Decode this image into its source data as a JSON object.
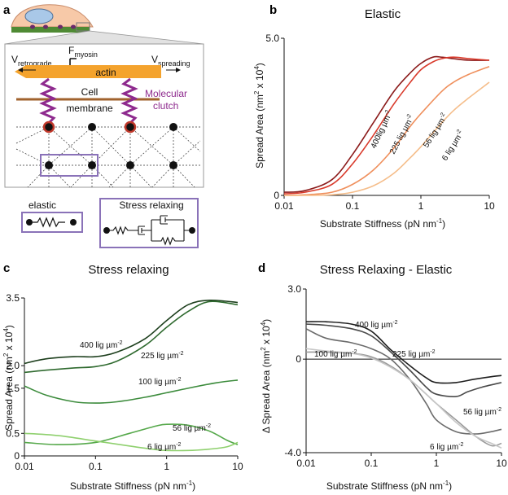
{
  "panel_a": {
    "label": "a",
    "v_retrograde": "V",
    "v_retrograde_sub": "retrograde",
    "f_myosin": "F",
    "f_myosin_sub": "myosin",
    "v_spreading": "V",
    "v_spreading_sub": "spreading",
    "actin": "actin",
    "membrane_1": "Cell",
    "membrane_2": "membrane",
    "clutch_1": "Molecular",
    "clutch_2": "clutch",
    "legend_elastic": "elastic",
    "legend_relax": "Stress relaxing",
    "colors": {
      "actin": "#f4a32d",
      "clutch": "#8e2a8e",
      "membrane": "#a0622d",
      "box": "#8a72b8",
      "cell": "#f7c9a8",
      "substrate": "#4f8a34"
    }
  },
  "chart_data": [
    {
      "panel": "b",
      "title": "Elastic",
      "type": "line",
      "xlabel": "Substrate Stiffness (pN nm",
      "xlabel_sup": "-1",
      "xlabel_end": ")",
      "ylabel": "Spread Area (nm",
      "ylabel_sup1": "2",
      "ylabel_mid": " x 10",
      "ylabel_sup2": "4",
      "ylabel_end": ")",
      "xscale": "log",
      "xlim": [
        0.01,
        10
      ],
      "ylim": [
        0,
        5.0
      ],
      "xticks": [
        "0.01",
        "0.1",
        "1",
        "10"
      ],
      "yticks": [
        "0",
        "5.0"
      ],
      "series": [
        {
          "name": "400 lig µm-2",
          "color": "#8b1a1a",
          "x": [
            0.01,
            0.02,
            0.05,
            0.1,
            0.2,
            0.4,
            0.7,
            1,
            1.5,
            2,
            3,
            5,
            10
          ],
          "y": [
            0.1,
            0.15,
            0.5,
            1.3,
            2.3,
            3.3,
            3.9,
            4.2,
            4.4,
            4.4,
            4.35,
            4.3,
            4.3
          ]
        },
        {
          "name": "225 lig µm-2",
          "color": "#d93a2b",
          "x": [
            0.01,
            0.02,
            0.05,
            0.1,
            0.2,
            0.4,
            0.7,
            1,
            1.5,
            2,
            3,
            5,
            10
          ],
          "y": [
            0.05,
            0.1,
            0.35,
            1.0,
            1.9,
            2.9,
            3.6,
            4.0,
            4.25,
            4.35,
            4.4,
            4.35,
            4.3
          ]
        },
        {
          "name": "56 lig µm-2",
          "color": "#ef8f5c",
          "x": [
            0.01,
            0.02,
            0.05,
            0.1,
            0.2,
            0.4,
            0.7,
            1,
            2,
            3,
            5,
            10
          ],
          "y": [
            0.0,
            0.02,
            0.1,
            0.35,
            0.8,
            1.5,
            2.2,
            2.6,
            3.3,
            3.6,
            3.85,
            4.1
          ]
        },
        {
          "name": "6 lig µm-2",
          "color": "#f5bd8a",
          "x": [
            0.01,
            0.02,
            0.05,
            0.1,
            0.2,
            0.4,
            0.7,
            1,
            2,
            3,
            5,
            10
          ],
          "y": [
            0.0,
            0.0,
            0.02,
            0.1,
            0.3,
            0.7,
            1.2,
            1.55,
            2.3,
            2.7,
            3.1,
            3.6
          ]
        }
      ],
      "annotations": [
        {
          "num": "400",
          "text": "lig µm",
          "sup": "-2"
        },
        {
          "num": "225",
          "text": " lig µm",
          "sup": "-2"
        },
        {
          "num": "56",
          "text": " lig µm",
          "sup": "-2"
        },
        {
          "num": "6",
          "text": " lig µm",
          "sup": "-2"
        }
      ]
    },
    {
      "panel": "c",
      "title": "Stress relaxing",
      "type": "line",
      "xlabel": "Substrate Stiffness (pN nm",
      "xlabel_sup": "-1",
      "xlabel_end": ")",
      "ylabel": "Spread Area (nm",
      "ylabel_sup1": "2",
      "ylabel_mid": " x 10",
      "ylabel_sup2": "4",
      "ylabel_end": ")",
      "xscale": "log",
      "xlim": [
        0.01,
        10
      ],
      "ylim": [
        0,
        3.5
      ],
      "xticks": [
        "0.01",
        "0.1",
        "1",
        "10"
      ],
      "yticks": [
        "0",
        "0.5",
        "1.5",
        "2.0",
        "3.5"
      ],
      "series": [
        {
          "name": "400 lig µm-2",
          "color": "#1d3f1d",
          "x": [
            0.01,
            0.02,
            0.05,
            0.1,
            0.2,
            0.5,
            1,
            2,
            4,
            10
          ],
          "y": [
            2.05,
            2.15,
            2.2,
            2.2,
            2.3,
            2.6,
            3.0,
            3.35,
            3.45,
            3.4
          ]
        },
        {
          "name": "225 lig µm-2",
          "color": "#2f6a2f",
          "x": [
            0.01,
            0.02,
            0.05,
            0.1,
            0.2,
            0.5,
            1,
            2,
            4,
            10
          ],
          "y": [
            1.85,
            1.9,
            1.95,
            1.98,
            2.1,
            2.45,
            2.85,
            3.2,
            3.42,
            3.35
          ]
        },
        {
          "name": "100 lig µm-2",
          "color": "#3d8c3d",
          "x": [
            0.01,
            0.02,
            0.05,
            0.1,
            0.2,
            0.5,
            1,
            2,
            5,
            10
          ],
          "y": [
            1.55,
            1.35,
            1.2,
            1.17,
            1.2,
            1.3,
            1.4,
            1.5,
            1.62,
            1.68
          ]
        },
        {
          "name": "56 lig µm-2",
          "color": "#55a84a",
          "x": [
            0.01,
            0.03,
            0.1,
            0.3,
            0.7,
            1,
            2,
            4,
            7,
            10
          ],
          "y": [
            0.3,
            0.25,
            0.3,
            0.5,
            0.66,
            0.7,
            0.68,
            0.55,
            0.35,
            0.25
          ]
        },
        {
          "name": "6 lig µm-2",
          "color": "#8fd06e",
          "x": [
            0.01,
            0.03,
            0.1,
            0.3,
            0.7,
            1,
            2,
            4,
            7,
            10
          ],
          "y": [
            0.5,
            0.45,
            0.33,
            0.22,
            0.14,
            0.12,
            0.12,
            0.15,
            0.2,
            0.3
          ]
        }
      ],
      "annotations": [
        {
          "num": "400",
          "text": " lig µm",
          "sup": "-2"
        },
        {
          "num": "225",
          "text": " lig µm",
          "sup": "-2"
        },
        {
          "num": "100",
          "text": " lig µm",
          "sup": "-2"
        },
        {
          "num": "56",
          "text": " lig µm",
          "sup": "-2"
        },
        {
          "num": "6",
          "text": " lig µm",
          "sup": "-2"
        }
      ]
    },
    {
      "panel": "d",
      "title": "Stress Relaxing - Elastic",
      "type": "line",
      "xlabel": "Substrate Stiffness (pN nm",
      "xlabel_sup": "-1",
      "xlabel_end": ")",
      "ylabel": "Δ Spread Area (nm",
      "ylabel_sup1": "2",
      "ylabel_mid": " x 10",
      "ylabel_sup2": "4",
      "ylabel_end": ")",
      "xscale": "log",
      "xlim": [
        0.01,
        10
      ],
      "ylim": [
        -4.0,
        3.0
      ],
      "xticks": [
        "0.01",
        "0.1",
        "1",
        "10"
      ],
      "yticks": [
        "3.0",
        "0",
        "-4.0"
      ],
      "series": [
        {
          "name": "400 lig µm-2",
          "color": "#1e1e1e",
          "x": [
            0.01,
            0.02,
            0.05,
            0.1,
            0.2,
            0.4,
            0.7,
            1,
            2,
            4,
            7,
            10
          ],
          "y": [
            1.6,
            1.6,
            1.5,
            1.2,
            0.4,
            -0.3,
            -0.8,
            -1.0,
            -1.0,
            -0.85,
            -0.75,
            -0.7
          ]
        },
        {
          "name": "225 lig µm-2",
          "color": "#4a4a4a",
          "x": [
            0.01,
            0.02,
            0.05,
            0.1,
            0.2,
            0.4,
            0.7,
            1,
            2,
            3,
            5,
            10
          ],
          "y": [
            1.5,
            1.45,
            1.3,
            1.0,
            0.3,
            -0.5,
            -1.2,
            -1.5,
            -1.6,
            -1.4,
            -1.2,
            -1.0
          ]
        },
        {
          "name": "100 lig µm-2",
          "color": "#6b6b6b",
          "x": [
            0.01,
            0.02,
            0.05,
            0.1,
            0.2,
            0.4,
            0.7,
            1,
            2,
            4,
            7,
            10
          ],
          "y": [
            1.3,
            0.9,
            0.7,
            0.45,
            0.0,
            -0.9,
            -1.9,
            -2.6,
            -3.1,
            -3.2,
            -3.1,
            -3.0
          ]
        },
        {
          "name": "56 lig µm-2",
          "color": "#9a9a9a",
          "x": [
            0.01,
            0.02,
            0.05,
            0.1,
            0.2,
            0.4,
            0.7,
            1,
            2,
            4,
            7,
            10
          ],
          "y": [
            0.3,
            0.3,
            0.25,
            0.1,
            -0.3,
            -0.9,
            -1.5,
            -1.9,
            -2.6,
            -3.3,
            -3.7,
            -3.6
          ]
        },
        {
          "name": "6 lig µm-2",
          "color": "#c6c6c6",
          "x": [
            0.01,
            0.02,
            0.05,
            0.1,
            0.2,
            0.4,
            0.7,
            1,
            2,
            4,
            7,
            10
          ],
          "y": [
            0.45,
            0.35,
            0.25,
            0.05,
            -0.35,
            -0.9,
            -1.5,
            -1.9,
            -2.7,
            -3.3,
            -3.6,
            -3.8
          ]
        }
      ],
      "annotations": [
        {
          "num": "400",
          "text": " lig µm",
          "sup": "-2"
        },
        {
          "num": "100",
          "text": " lig µm",
          "sup": "-2"
        },
        {
          "num": "225",
          "text": " lig µm",
          "sup": "-2"
        },
        {
          "num": "56",
          "text": " lig µm",
          "sup": "-2"
        },
        {
          "num": "6",
          "text": " lig µm",
          "sup": "-2"
        }
      ]
    }
  ]
}
